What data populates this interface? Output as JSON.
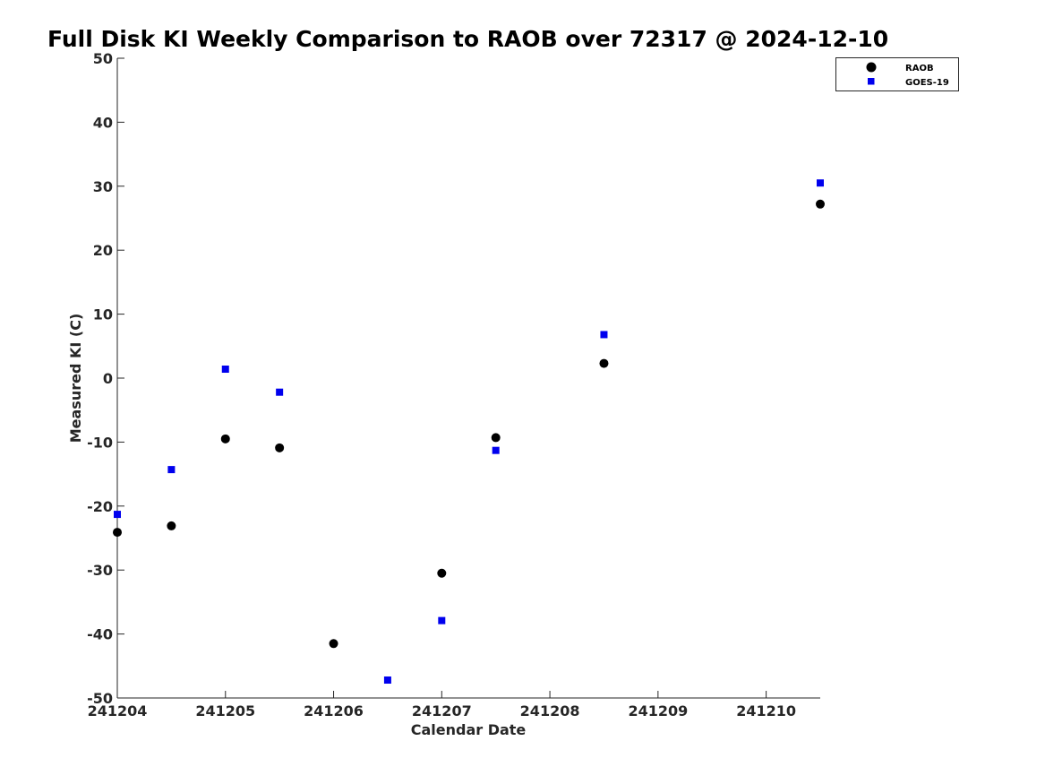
{
  "chart_data": {
    "type": "scatter",
    "title": "Full Disk KI Weekly Comparison to RAOB over 72317 @ 2024-12-10",
    "xlabel": "Calendar Date",
    "ylabel": "Measured KI (C)",
    "x_ticks": [
      "241204",
      "241205",
      "241206",
      "241207",
      "241208",
      "241209",
      "241210"
    ],
    "xlim": [
      "241204 00Z",
      "241210 12Z"
    ],
    "ylim": [
      -50,
      50
    ],
    "y_ticks": [
      50,
      40,
      30,
      20,
      10,
      0,
      -10,
      -20,
      -30,
      -40,
      -50
    ],
    "grid": false,
    "legend_position": "top-right",
    "series": [
      {
        "name": "RAOB",
        "marker": "circle",
        "color": "#000000",
        "points": [
          {
            "x": "241204 00Z",
            "y": -24.1
          },
          {
            "x": "241204 12Z",
            "y": -23.1
          },
          {
            "x": "241205 00Z",
            "y": -9.5
          },
          {
            "x": "241205 12Z",
            "y": -10.9
          },
          {
            "x": "241206 00Z",
            "y": -41.5
          },
          {
            "x": "241207 00Z",
            "y": -30.5
          },
          {
            "x": "241207 12Z",
            "y": -9.3
          },
          {
            "x": "241208 12Z",
            "y": 2.3
          },
          {
            "x": "241210 12Z",
            "y": 27.2
          }
        ]
      },
      {
        "name": "GOES-19",
        "marker": "square",
        "color": "#0000ee",
        "points": [
          {
            "x": "241204 00Z",
            "y": -21.3
          },
          {
            "x": "241204 12Z",
            "y": -14.3
          },
          {
            "x": "241205 00Z",
            "y": 1.4
          },
          {
            "x": "241205 12Z",
            "y": -2.2
          },
          {
            "x": "241206 12Z",
            "y": -47.2
          },
          {
            "x": "241207 00Z",
            "y": -37.9
          },
          {
            "x": "241207 12Z",
            "y": -11.3
          },
          {
            "x": "241208 12Z",
            "y": 6.8
          },
          {
            "x": "241210 12Z",
            "y": 30.5
          }
        ]
      }
    ]
  }
}
